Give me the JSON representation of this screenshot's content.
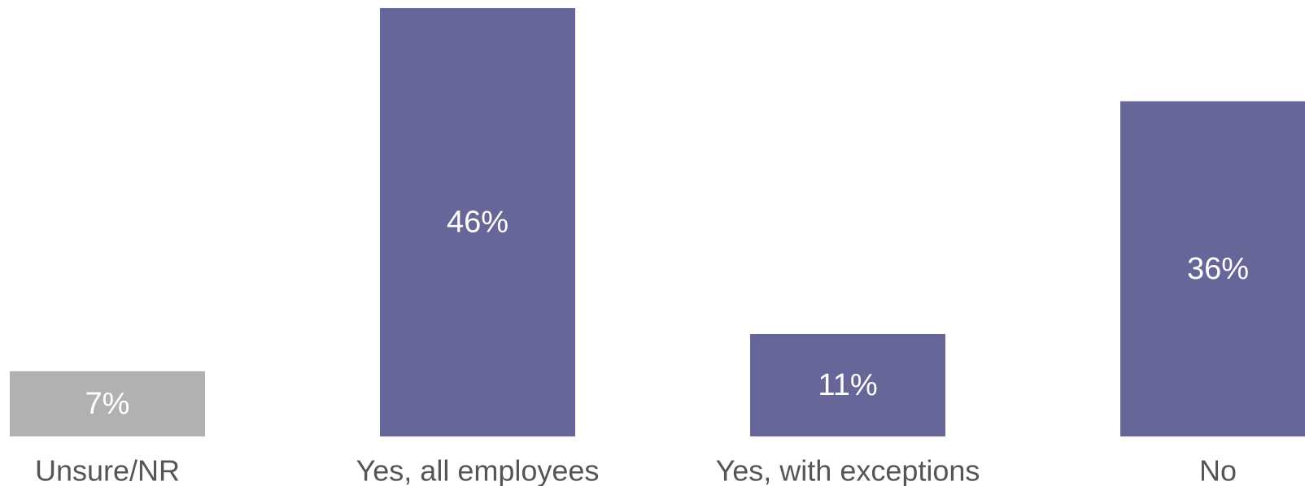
{
  "chart_data": {
    "type": "bar",
    "categories": [
      "Unsure/NR",
      "Yes, all employees",
      "Yes, with exceptions",
      "No"
    ],
    "values": [
      7,
      46,
      11,
      36
    ],
    "data_labels": [
      "7%",
      "46%",
      "11%",
      "36%"
    ],
    "unit": "%",
    "ylim": [
      0,
      46
    ],
    "title": "",
    "xlabel": "",
    "ylabel": "",
    "grid": false,
    "legend": "none",
    "colors": [
      "#b1b1b1",
      "#666699",
      "#666699",
      "#666699"
    ]
  }
}
